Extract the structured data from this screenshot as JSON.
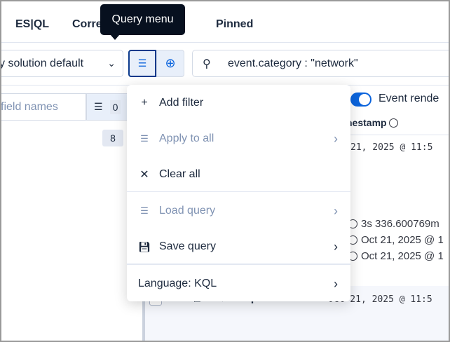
{
  "tabs": [
    {
      "label": "ES|QL"
    },
    {
      "label": "Correlations"
    },
    {
      "label": "Pinned"
    }
  ],
  "tooltip": "Query menu",
  "toolbar": {
    "data_view": "y solution default",
    "query": "event.category : \"network\""
  },
  "fields": {
    "search_placeholder": "field names",
    "filter_count": "0",
    "badge": "8"
  },
  "menu": {
    "items": [
      {
        "label": "Add filter",
        "icon": "plus-icon",
        "disabled": false
      },
      {
        "label": "Apply to all",
        "icon": "filter-icon",
        "disabled": true
      },
      {
        "label": "Clear all",
        "icon": "close-icon",
        "disabled": false
      },
      {
        "label": "Load query",
        "icon": "filter-icon",
        "disabled": true
      },
      {
        "label": "Save query",
        "icon": "save-icon",
        "disabled": false
      },
      {
        "label": "Language: KQL",
        "disabled": false
      }
    ]
  },
  "table": {
    "toggle_label": "Event rende",
    "column": "nestamp",
    "row1_ts": "21, 2025 @ 11:5",
    "details": [
      "3s 336.600769m",
      "Oct 21, 2025 @ 1",
      "Oct 21, 2025 @ 1"
    ],
    "row2_ts": "Oct 21, 2025 @ 11:5"
  },
  "colors": {
    "accent": "#0b64dd",
    "tooltip_bg": "#07101f",
    "text": "#1d2a3e",
    "disabled": "#8093b3"
  }
}
